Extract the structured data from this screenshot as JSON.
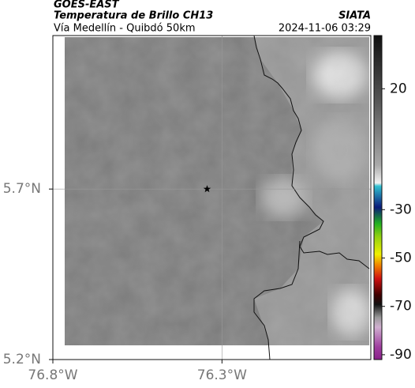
{
  "header": {
    "satellite": "GOES-EAST",
    "product": "Temperatura de Brillo CH13",
    "route": "Vía Medellín - Quibdó 50km",
    "source": "SIATA",
    "timestamp": "2024-11-06 03:29"
  },
  "map": {
    "xlim": [
      -76.8,
      -75.86
    ],
    "ylim": [
      5.2,
      6.15
    ],
    "xticks": [
      {
        "value": -76.8,
        "label": "76.8°W"
      },
      {
        "value": -76.3,
        "label": "76.3°W"
      }
    ],
    "yticks": [
      {
        "value": 5.7,
        "label": "5.7°N"
      },
      {
        "value": 5.2,
        "label": "5.2°N"
      }
    ],
    "grid": true,
    "marker": {
      "lon": -76.344,
      "lat": 5.7
    }
  },
  "colorbar": {
    "lim": [
      -92,
      42
    ],
    "ticks": [
      20,
      -30,
      -50,
      -70,
      -90
    ]
  }
}
